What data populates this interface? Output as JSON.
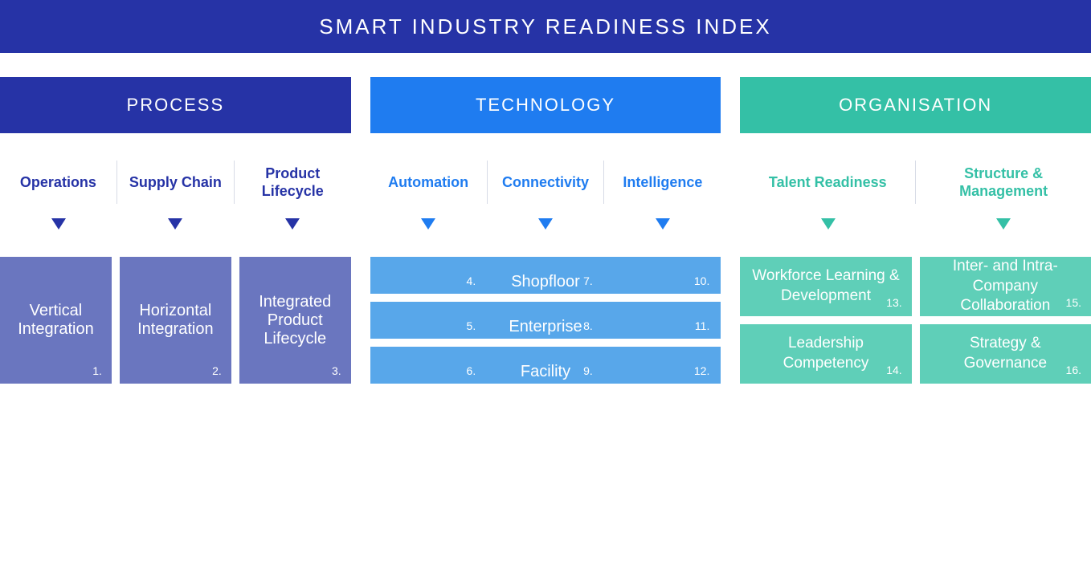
{
  "title": "SMART INDUSTRY READINESS INDEX",
  "title_bg": "#2633a6",
  "pillars": [
    {
      "name": "PROCESS",
      "header_bg": "#2633a6",
      "accent": "#2633a6",
      "box_bg": "#6a76bf",
      "subcats": [
        "Operations",
        "Supply Chain",
        "Product Lifecycle"
      ],
      "layout": "vertical3",
      "boxes": [
        {
          "label": "Vertical Integration",
          "num": "1."
        },
        {
          "label": "Horizontal Integration",
          "num": "2."
        },
        {
          "label": "Integrated Product Lifecycle",
          "num": "3."
        }
      ]
    },
    {
      "name": "TECHNOLOGY",
      "header_bg": "#1f7cf0",
      "accent": "#1f7cf0",
      "box_bg": "#58a7ea",
      "subcats": [
        "Automation",
        "Connectivity",
        "Intelligence"
      ],
      "layout": "rows3",
      "rows": [
        {
          "label": "Shopfloor",
          "nums": [
            "4.",
            "7.",
            "10."
          ]
        },
        {
          "label": "Enterprise",
          "nums": [
            "5.",
            "8.",
            "11."
          ]
        },
        {
          "label": "Facility",
          "nums": [
            "6.",
            "9.",
            "12."
          ]
        }
      ]
    },
    {
      "name": "ORGANISATION",
      "header_bg": "#34c0a6",
      "accent": "#34c0a6",
      "box_bg": "#5fcfb8",
      "subcats": [
        "Talent Readiness",
        "Structure & Management"
      ],
      "layout": "grid2x2",
      "boxes": [
        {
          "label": "Workforce Learning & Development",
          "num": "13."
        },
        {
          "label": "Inter- and Intra-Company Collaboration",
          "num": "15."
        },
        {
          "label": "Leadership Competency",
          "num": "14."
        },
        {
          "label": "Strategy & Governance",
          "num": "16."
        }
      ]
    }
  ]
}
